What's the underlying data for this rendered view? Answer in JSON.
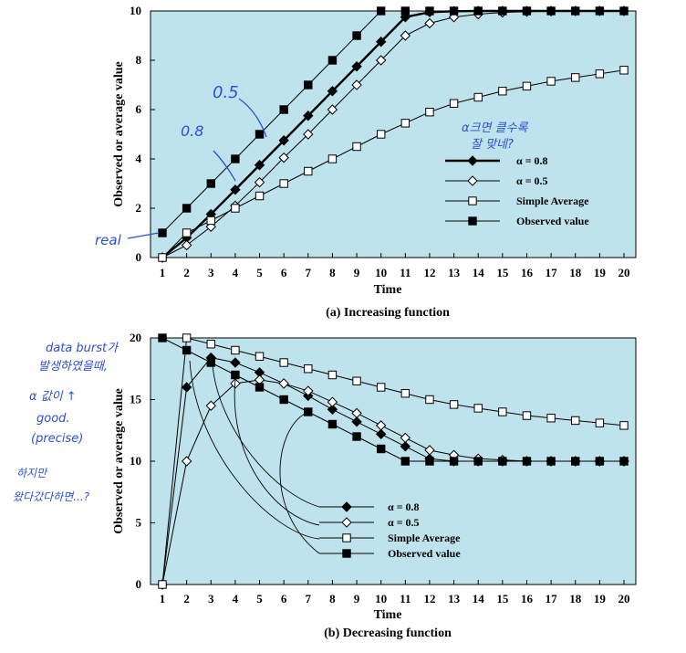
{
  "chart_data": [
    {
      "type": "line",
      "caption": "(a) Increasing function",
      "xlabel": "Time",
      "ylabel": "Observed or average value",
      "x": [
        1,
        2,
        3,
        4,
        5,
        6,
        7,
        8,
        9,
        10,
        11,
        12,
        13,
        14,
        15,
        16,
        17,
        18,
        19,
        20
      ],
      "xlim": [
        1,
        20
      ],
      "ylim": [
        0,
        10
      ],
      "yticks": [
        0,
        2,
        4,
        6,
        8,
        10
      ],
      "background": "#bfe3ec",
      "series": [
        {
          "name": "α = 0.8",
          "marker": "diamond-filled",
          "line_width": 2.4,
          "values": [
            0,
            0.8,
            1.76,
            2.75,
            3.75,
            4.75,
            5.75,
            6.75,
            7.75,
            8.75,
            9.75,
            9.95,
            9.99,
            10,
            10,
            10,
            10,
            10,
            10,
            10
          ]
        },
        {
          "name": "α = 0.5",
          "marker": "diamond-open",
          "line_width": 1,
          "values": [
            0,
            0.5,
            1.25,
            2.1,
            3.05,
            4.05,
            5.0,
            6.0,
            7.0,
            8.0,
            9.0,
            9.5,
            9.75,
            9.87,
            9.94,
            9.97,
            9.99,
            10,
            10,
            10
          ]
        },
        {
          "name": "Simple Average",
          "marker": "square-open",
          "line_width": 1,
          "values": [
            0,
            1.0,
            1.5,
            2.0,
            2.5,
            3.0,
            3.5,
            4.0,
            4.5,
            5.0,
            5.45,
            5.9,
            6.25,
            6.5,
            6.75,
            6.95,
            7.15,
            7.3,
            7.45,
            7.6
          ]
        },
        {
          "name": "Observed value",
          "marker": "square-filled",
          "line_width": 1,
          "values": [
            1,
            2,
            3,
            4,
            5,
            6,
            7,
            8,
            9,
            10,
            10,
            10,
            10,
            10,
            10,
            10,
            10,
            10,
            10,
            10
          ]
        }
      ],
      "legend": "bottom-right"
    },
    {
      "type": "line",
      "caption": "(b) Decreasing function",
      "xlabel": "Time",
      "ylabel": "Observed or average value",
      "x": [
        1,
        2,
        3,
        4,
        5,
        6,
        7,
        8,
        9,
        10,
        11,
        12,
        13,
        14,
        15,
        16,
        17,
        18,
        19,
        20
      ],
      "xlim": [
        1,
        20
      ],
      "ylim": [
        0,
        20
      ],
      "yticks": [
        0,
        5,
        10,
        15,
        20
      ],
      "background": "#bfe3ec",
      "series": [
        {
          "name": "α = 0.8",
          "marker": "diamond-filled",
          "line_width": 1,
          "values": [
            0,
            16,
            18.4,
            18,
            17.2,
            16.3,
            15.3,
            14.2,
            13.2,
            12.2,
            11.2,
            10.2,
            10,
            10,
            10,
            10,
            10,
            10,
            10,
            10
          ]
        },
        {
          "name": "α = 0.5",
          "marker": "diamond-open",
          "line_width": 1,
          "values": [
            0,
            10,
            14.5,
            16.3,
            16.6,
            16.3,
            15.7,
            14.8,
            13.9,
            12.9,
            11.9,
            10.9,
            10.5,
            10.2,
            10.1,
            10,
            10,
            10,
            10,
            10
          ]
        },
        {
          "name": "Simple Average",
          "marker": "square-open",
          "line_width": 1,
          "values": [
            0,
            20,
            19.5,
            19,
            18.5,
            18,
            17.5,
            17,
            16.5,
            16,
            15.5,
            15,
            14.6,
            14.3,
            14,
            13.7,
            13.5,
            13.3,
            13.1,
            12.9
          ]
        },
        {
          "name": "Observed value",
          "marker": "square-filled",
          "line_width": 1,
          "values": [
            20,
            19,
            18,
            17,
            16,
            15,
            14,
            13,
            12,
            11,
            10,
            10,
            10,
            10,
            10,
            10,
            10,
            10,
            10,
            10
          ]
        }
      ],
      "legend": "bottom-center"
    }
  ],
  "annotations": {
    "a_alpha05": "0.5",
    "a_alpha08": "0.8",
    "a_real": "real",
    "a_question_line1": "α크면 클수록",
    "a_question_line2": "잘 맞네?",
    "b_note_line1": "data burst가",
    "b_note_line2": "발생하였을때,",
    "b_note_line3": "α 값이 ↑",
    "b_note_line4": "good.",
    "b_note_line5": "(precise)",
    "b_note_line6": "하지만",
    "b_note_line7": "왔다갔다하면...?"
  }
}
